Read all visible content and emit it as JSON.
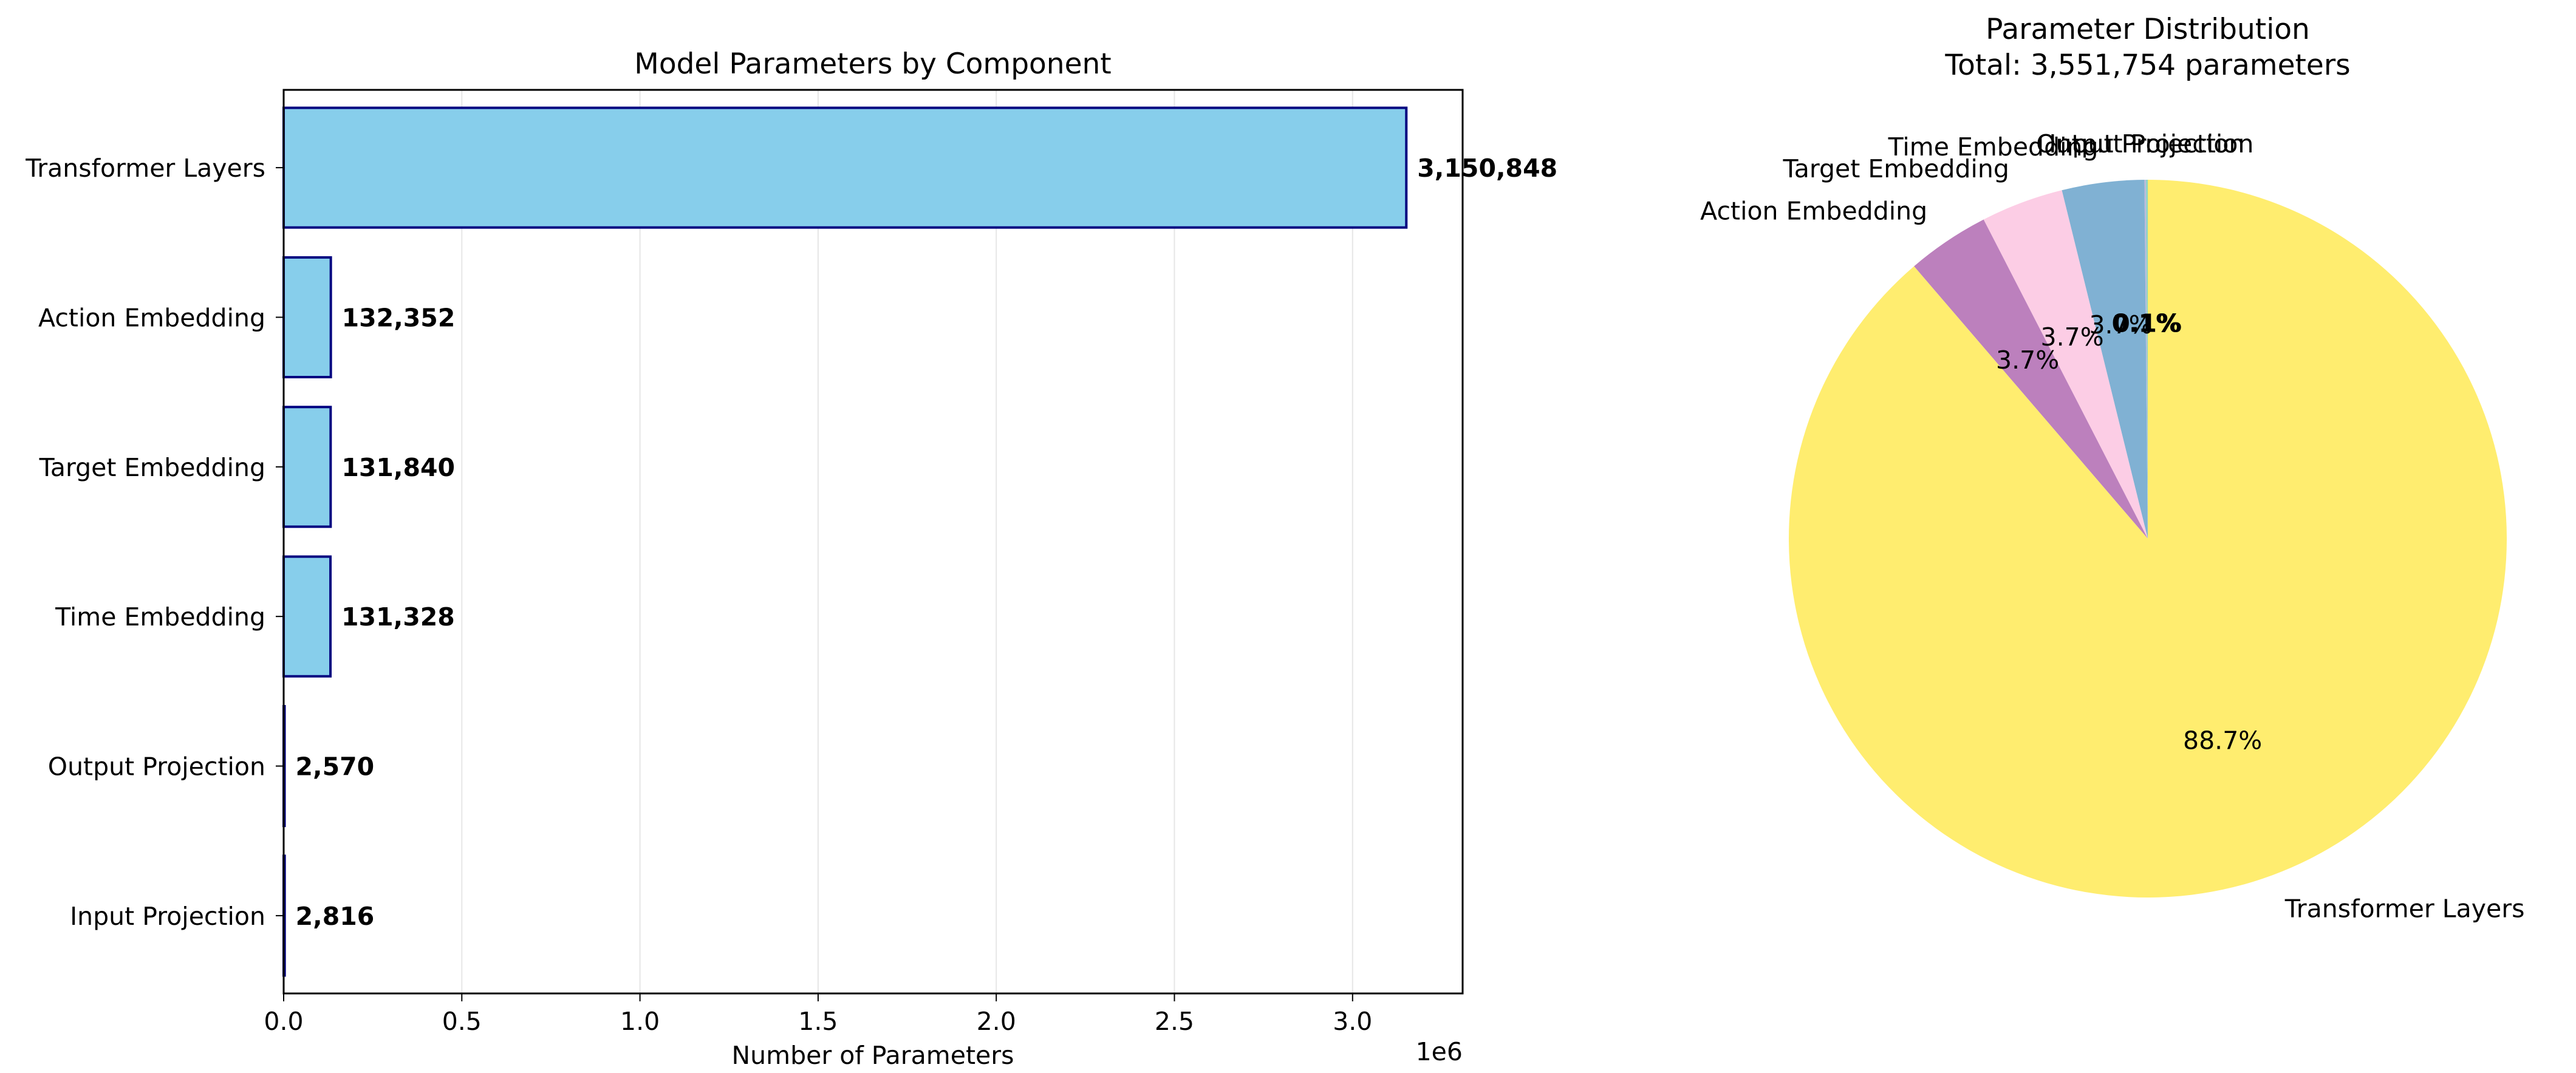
{
  "chart_data": [
    {
      "type": "bar",
      "orientation": "horizontal",
      "title": "Model Parameters by Component",
      "xlabel": "Number of Parameters",
      "ylabel": "",
      "offset_label": "1e6",
      "xlim": [
        0,
        3.30889
      ],
      "xticks": [
        0.0,
        0.5,
        1.0,
        1.5,
        2.0,
        2.5,
        3.0
      ],
      "xtick_labels": [
        "0.0",
        "0.5",
        "1.0",
        "1.5",
        "2.0",
        "2.5",
        "3.0"
      ],
      "grid": "x",
      "categories": [
        "Input Projection",
        "Output Projection",
        "Time Embedding",
        "Target Embedding",
        "Action Embedding",
        "Transformer Layers"
      ],
      "values": [
        2816,
        2570,
        131328,
        131840,
        132352,
        3150848
      ],
      "value_labels": [
        "2,816",
        "2,570",
        "131,328",
        "131,840",
        "132,352",
        "3,150,848"
      ],
      "bar_color": "#87ceeb",
      "edge_color": "#000080"
    },
    {
      "type": "pie",
      "title": "Parameter Distribution",
      "subtitle": "Total: 3,551,754 parameters",
      "labels": [
        "Input Projection",
        "Output Projection",
        "Time Embedding",
        "Target Embedding",
        "Action Embedding",
        "Transformer Layers"
      ],
      "values": [
        2816,
        2570,
        131328,
        131840,
        132352,
        3150848
      ],
      "pct_labels": [
        "0.1%",
        "0.1%",
        "3.7%",
        "3.7%",
        "3.7%",
        "88.7%"
      ],
      "colors": [
        "#8dd3c7",
        "#bebada",
        "#80b1d3",
        "#fccde5",
        "#bc80bd",
        "#ffed6f"
      ],
      "start_angle_deg": 90,
      "direction": "counterclockwise"
    }
  ]
}
